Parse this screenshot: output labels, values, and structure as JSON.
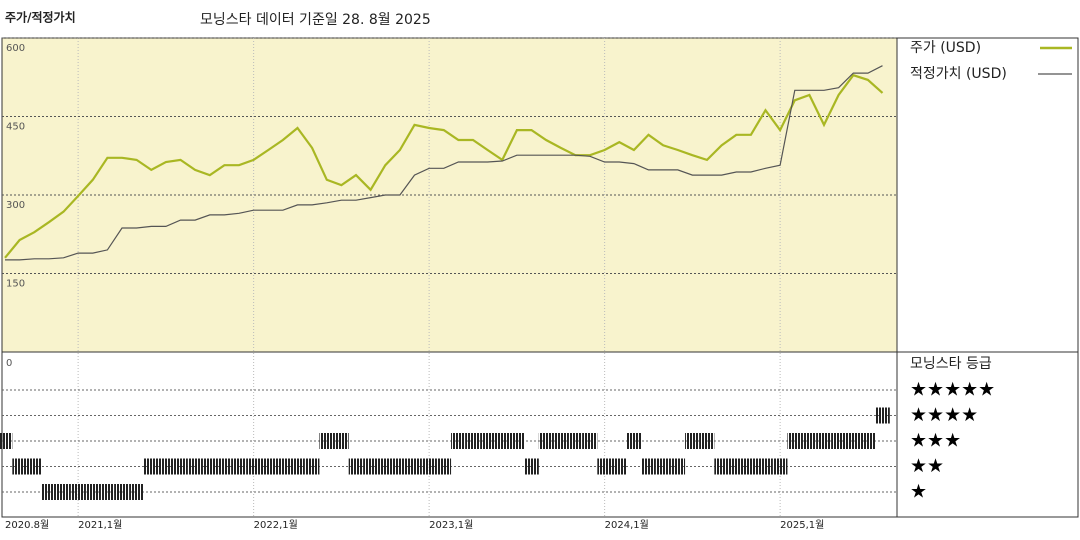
{
  "chart_data": [
    {
      "type": "line",
      "title": "주가/적정가치",
      "subtitle": "모닝스타 데이터 기준일 28. 8월 2025",
      "x": [
        "2020-08",
        "2020-09",
        "2020-10",
        "2020-11",
        "2020-12",
        "2021-01",
        "2021-02",
        "2021-03",
        "2021-04",
        "2021-05",
        "2021-06",
        "2021-07",
        "2021-08",
        "2021-09",
        "2021-10",
        "2021-11",
        "2021-12",
        "2022-01",
        "2022-02",
        "2022-03",
        "2022-04",
        "2022-05",
        "2022-06",
        "2022-07",
        "2022-08",
        "2022-09",
        "2022-10",
        "2022-11",
        "2022-12",
        "2023-01",
        "2023-02",
        "2023-03",
        "2023-04",
        "2023-05",
        "2023-06",
        "2023-07",
        "2023-08",
        "2023-09",
        "2023-10",
        "2023-11",
        "2023-12",
        "2024-01",
        "2024-02",
        "2024-03",
        "2024-04",
        "2024-05",
        "2024-06",
        "2024-07",
        "2024-08",
        "2024-09",
        "2024-10",
        "2024-11",
        "2024-12",
        "2025-01",
        "2025-02",
        "2025-03",
        "2025-04",
        "2025-05",
        "2025-06",
        "2025-07",
        "2025-08"
      ],
      "series": [
        {
          "name": "주가 (USD)",
          "color": "#a9b723",
          "values": [
            180,
            214,
            229,
            248,
            268,
            298,
            329,
            371,
            371,
            367,
            348,
            363,
            367,
            348,
            338,
            357,
            357,
            367,
            386,
            405,
            428,
            390,
            329,
            319,
            338,
            310,
            357,
            386,
            434,
            428,
            424,
            405,
            405,
            386,
            367,
            424,
            424,
            405,
            390,
            376,
            376,
            386,
            401,
            386,
            415,
            395,
            386,
            376,
            367,
            395,
            415,
            415,
            462,
            424,
            481,
            491,
            434,
            491,
            529,
            520,
            495
          ]
        },
        {
          "name": "적정가치 (USD)",
          "color": "#555555",
          "values": [
            176,
            176,
            178,
            178,
            180,
            189,
            189,
            195,
            237,
            237,
            240,
            240,
            252,
            252,
            262,
            262,
            265,
            271,
            271,
            271,
            281,
            281,
            285,
            290,
            290,
            295,
            300,
            300,
            338,
            351,
            351,
            363,
            363,
            363,
            365,
            376,
            376,
            376,
            376,
            376,
            374,
            363,
            363,
            360,
            348,
            348,
            348,
            338,
            338,
            338,
            344,
            344,
            351,
            357,
            500,
            500,
            500,
            505,
            533,
            533,
            547
          ]
        }
      ],
      "ylim": [
        0,
        600
      ],
      "yticks": [
        150,
        300,
        450,
        600
      ],
      "grid": true,
      "xticks": [
        {
          "value": "2020-08",
          "label": "2020.8월"
        },
        {
          "value": "2021-01",
          "label": "2021,1월"
        },
        {
          "value": "2022-01",
          "label": "2022,1월"
        },
        {
          "value": "2023-01",
          "label": "2023,1월"
        },
        {
          "value": "2024-01",
          "label": "2024,1월"
        },
        {
          "value": "2025-01",
          "label": "2025,1월"
        }
      ]
    },
    {
      "type": "rating",
      "title": "모닝스타 등급",
      "axis_label": "0",
      "rating_levels": [
        5,
        4,
        3,
        2,
        1
      ],
      "rating_labels": [
        "★★★★★",
        "★★★★",
        "★★★",
        "★★",
        "★"
      ],
      "values": [
        3,
        2,
        2,
        1,
        1,
        1,
        1,
        1,
        1,
        1,
        2,
        2,
        2,
        2,
        2,
        2,
        2,
        2,
        2,
        2,
        2,
        2,
        3,
        3,
        2,
        2,
        2,
        2,
        2,
        2,
        2,
        3,
        3,
        3,
        3,
        3,
        2,
        3,
        3,
        3,
        3,
        2,
        2,
        3,
        2,
        2,
        2,
        3,
        3,
        2,
        2,
        2,
        2,
        2,
        3,
        3,
        3,
        3,
        3,
        3,
        4
      ]
    }
  ]
}
